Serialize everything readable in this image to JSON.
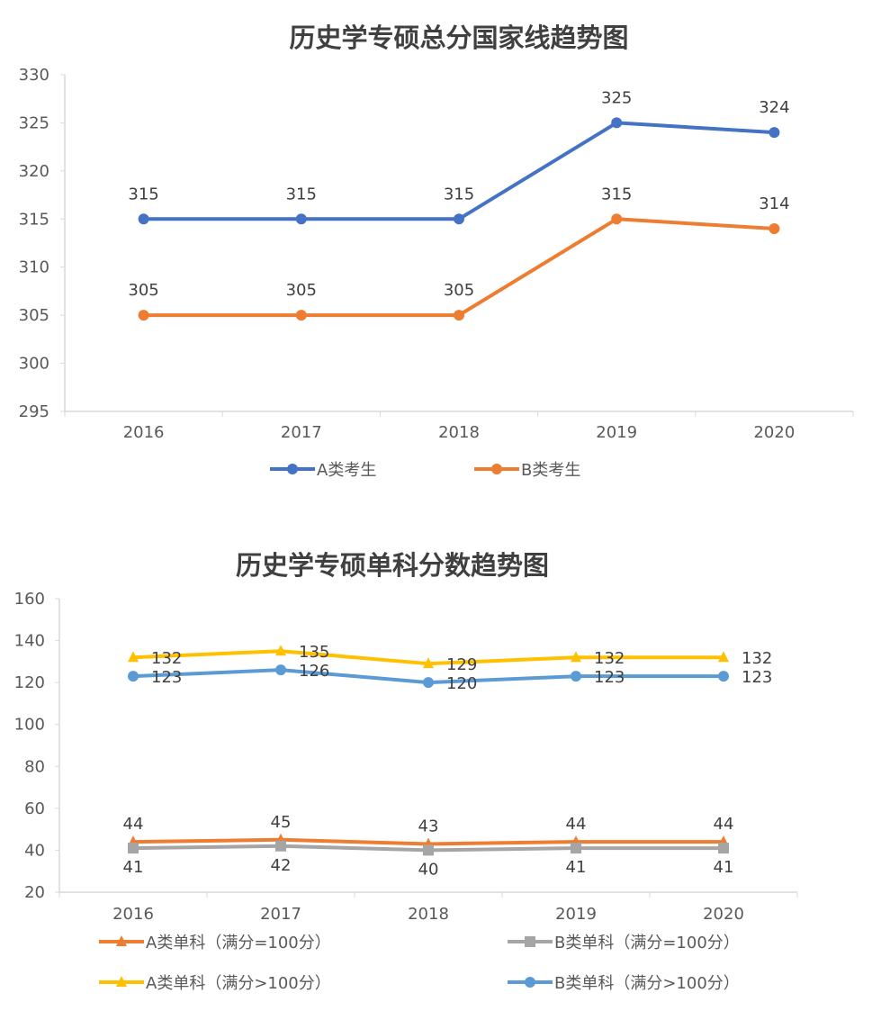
{
  "chart_data": [
    {
      "type": "line",
      "title": "历史学专硕总分国家线趋势图",
      "categories": [
        "2016",
        "2017",
        "2018",
        "2019",
        "2020"
      ],
      "ylim": [
        295,
        330
      ],
      "yticks": [
        295,
        300,
        305,
        310,
        315,
        320,
        325,
        330
      ],
      "grid": false,
      "legend": "bottom",
      "series": [
        {
          "name": "A类考生",
          "values": [
            315,
            315,
            315,
            325,
            324
          ],
          "color": "#4472C4",
          "marker": "circle"
        },
        {
          "name": "B类考生",
          "values": [
            305,
            305,
            305,
            315,
            314
          ],
          "color": "#ED7D31",
          "marker": "circle"
        }
      ]
    },
    {
      "type": "line",
      "title": "历史学专硕单科分数趋势图",
      "categories": [
        "2016",
        "2017",
        "2018",
        "2019",
        "2020"
      ],
      "ylim": [
        20,
        160
      ],
      "yticks": [
        20,
        40,
        60,
        80,
        100,
        120,
        140,
        160
      ],
      "grid": false,
      "legend": "bottom",
      "series": [
        {
          "name": "A类单科（满分=100分）",
          "values": [
            44,
            45,
            43,
            44,
            44
          ],
          "color": "#ED7D31",
          "marker": "triangle"
        },
        {
          "name": "B类单科（满分=100分）",
          "values": [
            41,
            42,
            40,
            41,
            41
          ],
          "color": "#A5A5A5",
          "marker": "square"
        },
        {
          "name": "A类单科（满分>100分）",
          "values": [
            132,
            135,
            129,
            132,
            132
          ],
          "color": "#FFC000",
          "marker": "triangle"
        },
        {
          "name": "B类单科（满分>100分）",
          "values": [
            123,
            126,
            120,
            123,
            123
          ],
          "color": "#5B9BD5",
          "marker": "circle"
        }
      ]
    }
  ]
}
